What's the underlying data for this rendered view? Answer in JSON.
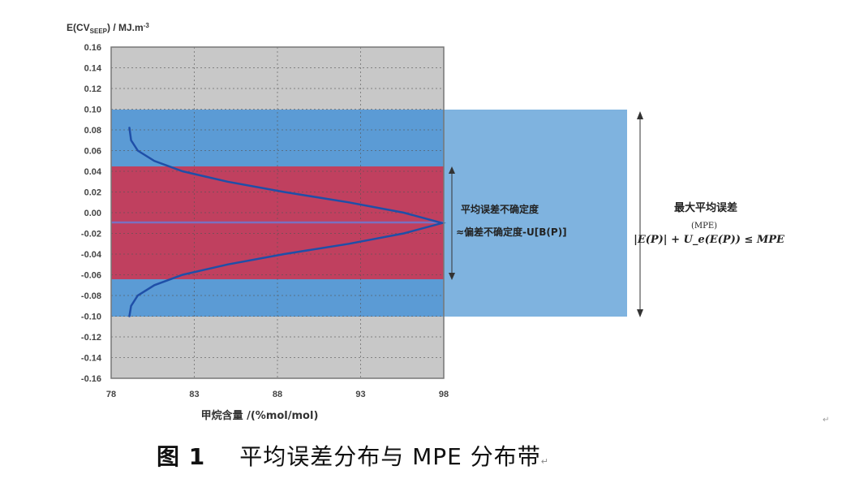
{
  "chart_data": {
    "type": "line",
    "title": "",
    "xlabel": "甲烷含量 /(%mol/mol)",
    "ylabel": "E(CV_SEEP) / MJ.m-3",
    "ylabel_parts": {
      "main": "E(CV",
      "sub": "SEEP",
      "rest": ") / MJ.m",
      "sup": "-3"
    },
    "xlim": [
      78,
      98
    ],
    "ylim": [
      -0.16,
      0.16
    ],
    "x_ticks": [
      78,
      83,
      88,
      93,
      98
    ],
    "x_tick_labels": [
      "78",
      "83",
      "88",
      "93",
      "98"
    ],
    "y_ticks": [
      0.16,
      0.14,
      0.12,
      0.1,
      0.08,
      0.06,
      0.04,
      0.02,
      0.0,
      -0.02,
      -0.04,
      -0.06,
      -0.08,
      -0.1,
      -0.12,
      -0.14,
      -0.16
    ],
    "y_tick_labels": [
      "0.16",
      "0.14",
      "0.12",
      "0.10",
      "0.08",
      "0.06",
      "0.04",
      "0.02",
      "0.00",
      "-0.02",
      "-0.04",
      "-0.06",
      "-0.08",
      "-0.10",
      "-0.12",
      "-0.14",
      "-0.16"
    ],
    "grid": true,
    "background_color": "#c8c8c8",
    "bands": [
      {
        "name": "MPE band",
        "ymin": -0.1,
        "ymax": 0.1,
        "color": "#5b9bd5",
        "extends_beyond_plot": true
      },
      {
        "name": "Mean error uncertainty band",
        "ymin": -0.065,
        "ymax": 0.045,
        "color": "#c0405f"
      }
    ],
    "series": [
      {
        "name": "Mean error distribution (normal curve, rotated)",
        "color": "#1f4fa8",
        "mean": -0.01,
        "points_y": [
          0.082,
          0.07,
          0.06,
          0.05,
          0.04,
          0.03,
          0.02,
          0.01,
          0.0,
          -0.01,
          -0.02,
          -0.03,
          -0.04,
          -0.05,
          -0.06,
          -0.07,
          -0.08,
          -0.09,
          -0.1
        ],
        "points_x": [
          79.1,
          79.2,
          79.6,
          80.6,
          82.3,
          85.0,
          88.4,
          92.3,
          95.6,
          97.9,
          95.6,
          92.3,
          88.4,
          85.0,
          82.3,
          80.6,
          79.6,
          79.2,
          79.1
        ]
      },
      {
        "name": "Mean line",
        "color": "#7b6fc0",
        "y": -0.01,
        "x_range": [
          78,
          98
        ]
      }
    ],
    "annotations": [
      {
        "text_line1": "平均误差不确定度",
        "text_line2": "≈偏差不确定度-U[B(P)]",
        "arrow_y_range": [
          0.045,
          -0.065
        ]
      },
      {
        "text_line1": "最大平均误差",
        "formula": "|E(P)| + U_e(E(P)) ≤ MPE",
        "formula_top": "(MPE)",
        "arrow_y_range": [
          0.1,
          -0.1
        ]
      }
    ]
  },
  "figure": {
    "caption_number": "图 1",
    "caption_text": "平均误差分布与 MPE 分布带",
    "caption_mark": "↵",
    "para_mark": "↵"
  }
}
